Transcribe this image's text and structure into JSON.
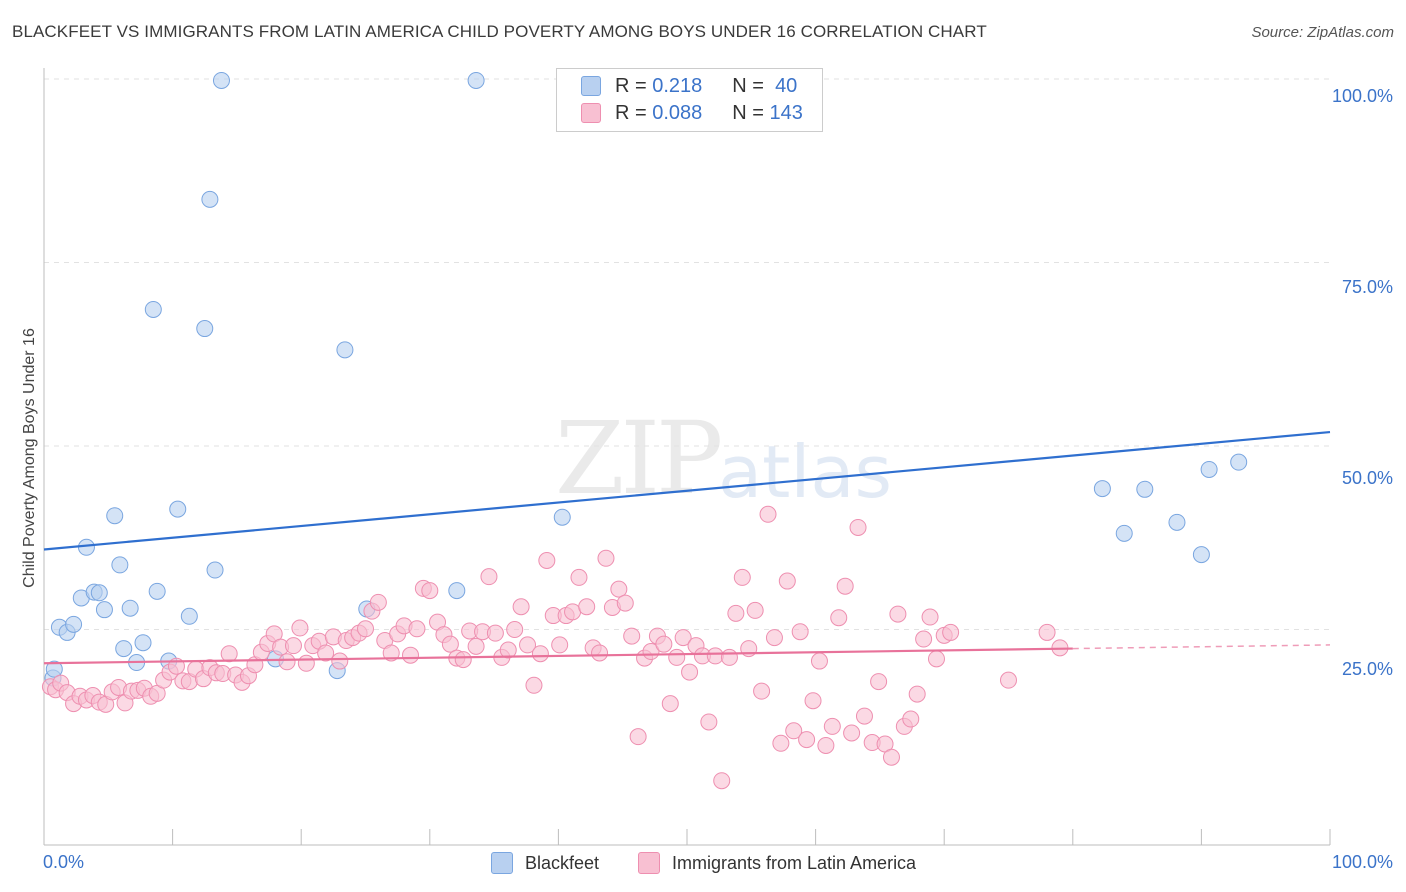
{
  "header": {
    "title": "BLACKFEET VS IMMIGRANTS FROM LATIN AMERICA CHILD POVERTY AMONG BOYS UNDER 16 CORRELATION CHART",
    "source": "Source: ZipAtlas.com"
  },
  "watermark": {
    "zip": "ZIP",
    "atlas": "atlas"
  },
  "legend_top": {
    "rows": [
      {
        "r_label": "R =",
        "r_value": "0.218",
        "n_label": "N =",
        "n_value": "40",
        "color": "#b8d0f0"
      },
      {
        "r_label": "R =",
        "r_value": "0.088",
        "n_label": "N =",
        "n_value": "143",
        "color": "#f8c0d2"
      }
    ]
  },
  "legend_bottom": {
    "items": [
      {
        "label": "Blackfeet",
        "color": "#b8d0f0"
      },
      {
        "label": "Immigrants from Latin America",
        "color": "#f8c0d2"
      }
    ]
  },
  "axes": {
    "x_min_label": "0.0%",
    "x_max_label": "100.0%",
    "y_ticks": [
      "100.0%",
      "75.0%",
      "50.0%",
      "25.0%"
    ]
  },
  "chart_data": {
    "type": "scatter",
    "title": "BLACKFEET VS IMMIGRANTS FROM LATIN AMERICA CHILD POVERTY AMONG BOYS UNDER 16 CORRELATION CHART",
    "xlabel": "",
    "ylabel": "Child Poverty Among Boys Under 16",
    "xlim": [
      0,
      100
    ],
    "ylim": [
      0,
      100
    ],
    "grid": true,
    "legend_position": "top-center",
    "series": [
      {
        "name": "Blackfeet",
        "color": "#7aa6e0",
        "fill": "#b8d0f0",
        "trend_color": "#2f6fcf",
        "trend": {
          "x": [
            0,
            100
          ],
          "y": [
            35.9,
            51.9
          ]
        },
        "points": [
          [
            0.7,
            18.4
          ],
          [
            0.8,
            19.6
          ],
          [
            1.2,
            25.3
          ],
          [
            1.8,
            24.6
          ],
          [
            2.3,
            25.7
          ],
          [
            2.9,
            29.3
          ],
          [
            3.3,
            36.2
          ],
          [
            3.9,
            30.1
          ],
          [
            4.3,
            30.0
          ],
          [
            4.7,
            27.7
          ],
          [
            5.5,
            40.5
          ],
          [
            5.9,
            33.8
          ],
          [
            6.2,
            22.4
          ],
          [
            6.7,
            27.9
          ],
          [
            7.2,
            20.5
          ],
          [
            7.7,
            23.2
          ],
          [
            8.5,
            68.6
          ],
          [
            8.8,
            30.2
          ],
          [
            9.7,
            20.7
          ],
          [
            10.4,
            41.4
          ],
          [
            11.3,
            26.8
          ],
          [
            12.5,
            66.0
          ],
          [
            12.9,
            83.6
          ],
          [
            13.3,
            33.1
          ],
          [
            13.8,
            99.8
          ],
          [
            18.0,
            21.0
          ],
          [
            22.8,
            19.4
          ],
          [
            23.4,
            63.1
          ],
          [
            25.1,
            27.8
          ],
          [
            32.1,
            30.3
          ],
          [
            33.6,
            99.8
          ],
          [
            40.3,
            40.3
          ],
          [
            46.7,
            99.8
          ],
          [
            82.3,
            44.2
          ],
          [
            84.0,
            38.1
          ],
          [
            85.6,
            44.1
          ],
          [
            88.1,
            39.6
          ],
          [
            90.0,
            35.2
          ],
          [
            90.6,
            46.8
          ],
          [
            92.9,
            47.8
          ]
        ]
      },
      {
        "name": "Immigrants from Latin America",
        "color": "#ee8fb0",
        "fill": "#f8c0d2",
        "trend_color": "#e8729a",
        "trend": {
          "x": [
            0,
            80
          ],
          "y": [
            20.4,
            22.4
          ]
        },
        "trend_dashed_extension": {
          "x": [
            80,
            100
          ],
          "y": [
            22.4,
            22.9
          ]
        },
        "points": [
          [
            0.5,
            17.2
          ],
          [
            0.9,
            16.8
          ],
          [
            1.3,
            17.7
          ],
          [
            1.8,
            16.4
          ],
          [
            2.3,
            14.9
          ],
          [
            2.8,
            15.9
          ],
          [
            3.3,
            15.4
          ],
          [
            3.8,
            16.0
          ],
          [
            4.3,
            15.1
          ],
          [
            4.8,
            14.8
          ],
          [
            5.3,
            16.5
          ],
          [
            5.8,
            17.1
          ],
          [
            6.3,
            15.0
          ],
          [
            6.8,
            16.6
          ],
          [
            7.3,
            16.7
          ],
          [
            7.8,
            17.0
          ],
          [
            8.3,
            15.9
          ],
          [
            8.8,
            16.3
          ],
          [
            9.3,
            18.1
          ],
          [
            9.8,
            19.2
          ],
          [
            10.3,
            20.0
          ],
          [
            10.8,
            18.0
          ],
          [
            11.3,
            17.9
          ],
          [
            11.8,
            19.6
          ],
          [
            12.4,
            18.3
          ],
          [
            12.9,
            19.8
          ],
          [
            13.4,
            19.1
          ],
          [
            13.9,
            19.0
          ],
          [
            14.4,
            21.7
          ],
          [
            14.9,
            18.8
          ],
          [
            15.4,
            17.8
          ],
          [
            15.9,
            18.7
          ],
          [
            16.4,
            20.2
          ],
          [
            16.9,
            21.9
          ],
          [
            17.4,
            23.1
          ],
          [
            17.9,
            24.4
          ],
          [
            18.4,
            22.6
          ],
          [
            18.9,
            20.6
          ],
          [
            19.4,
            22.8
          ],
          [
            19.9,
            25.2
          ],
          [
            20.4,
            20.4
          ],
          [
            20.9,
            22.8
          ],
          [
            21.4,
            23.4
          ],
          [
            21.9,
            21.8
          ],
          [
            22.5,
            24.0
          ],
          [
            23.0,
            20.7
          ],
          [
            23.5,
            23.5
          ],
          [
            24.0,
            23.9
          ],
          [
            24.5,
            24.5
          ],
          [
            25.0,
            25.1
          ],
          [
            25.5,
            27.5
          ],
          [
            26.0,
            28.7
          ],
          [
            26.5,
            23.5
          ],
          [
            27.0,
            21.8
          ],
          [
            27.5,
            24.4
          ],
          [
            28.0,
            25.5
          ],
          [
            28.5,
            21.5
          ],
          [
            29.0,
            25.1
          ],
          [
            29.5,
            30.6
          ],
          [
            30.0,
            30.3
          ],
          [
            30.6,
            26.0
          ],
          [
            31.1,
            24.3
          ],
          [
            31.6,
            23.0
          ],
          [
            32.1,
            21.1
          ],
          [
            32.6,
            20.9
          ],
          [
            33.1,
            24.8
          ],
          [
            33.6,
            22.7
          ],
          [
            34.1,
            24.7
          ],
          [
            34.6,
            32.2
          ],
          [
            35.1,
            24.5
          ],
          [
            35.6,
            21.2
          ],
          [
            36.1,
            22.2
          ],
          [
            36.6,
            25.0
          ],
          [
            37.1,
            28.1
          ],
          [
            37.6,
            22.9
          ],
          [
            38.1,
            17.4
          ],
          [
            38.6,
            21.7
          ],
          [
            39.1,
            34.4
          ],
          [
            39.6,
            26.9
          ],
          [
            40.1,
            22.9
          ],
          [
            40.6,
            26.9
          ],
          [
            41.1,
            27.4
          ],
          [
            41.6,
            32.1
          ],
          [
            42.2,
            28.1
          ],
          [
            42.7,
            22.5
          ],
          [
            43.2,
            21.8
          ],
          [
            43.7,
            34.7
          ],
          [
            44.2,
            28.0
          ],
          [
            44.7,
            30.5
          ],
          [
            45.2,
            28.6
          ],
          [
            45.7,
            24.1
          ],
          [
            46.2,
            10.4
          ],
          [
            46.7,
            21.1
          ],
          [
            47.2,
            22.0
          ],
          [
            47.7,
            24.1
          ],
          [
            48.2,
            23.0
          ],
          [
            48.7,
            14.9
          ],
          [
            49.2,
            21.2
          ],
          [
            49.7,
            23.9
          ],
          [
            50.2,
            19.2
          ],
          [
            50.7,
            22.8
          ],
          [
            51.2,
            21.4
          ],
          [
            51.7,
            12.4
          ],
          [
            52.2,
            21.4
          ],
          [
            52.7,
            4.4
          ],
          [
            53.3,
            21.2
          ],
          [
            53.8,
            27.2
          ],
          [
            54.3,
            32.1
          ],
          [
            54.8,
            22.4
          ],
          [
            55.3,
            27.6
          ],
          [
            55.8,
            16.6
          ],
          [
            56.3,
            40.7
          ],
          [
            56.8,
            23.9
          ],
          [
            57.3,
            9.5
          ],
          [
            57.8,
            31.6
          ],
          [
            58.3,
            11.2
          ],
          [
            58.8,
            24.7
          ],
          [
            59.3,
            10.0
          ],
          [
            59.8,
            15.3
          ],
          [
            60.3,
            20.7
          ],
          [
            60.8,
            9.2
          ],
          [
            61.3,
            11.8
          ],
          [
            61.8,
            26.6
          ],
          [
            62.3,
            30.9
          ],
          [
            62.8,
            10.9
          ],
          [
            63.3,
            38.9
          ],
          [
            63.8,
            13.2
          ],
          [
            64.4,
            9.6
          ],
          [
            64.9,
            17.9
          ],
          [
            65.4,
            9.4
          ],
          [
            65.9,
            7.6
          ],
          [
            66.4,
            27.1
          ],
          [
            66.9,
            11.8
          ],
          [
            67.4,
            12.8
          ],
          [
            67.9,
            16.2
          ],
          [
            68.4,
            23.7
          ],
          [
            68.9,
            26.7
          ],
          [
            69.4,
            21.0
          ],
          [
            70.0,
            24.2
          ],
          [
            70.5,
            24.6
          ],
          [
            75.0,
            18.1
          ],
          [
            78.0,
            24.6
          ],
          [
            79.0,
            22.5
          ]
        ]
      }
    ]
  }
}
